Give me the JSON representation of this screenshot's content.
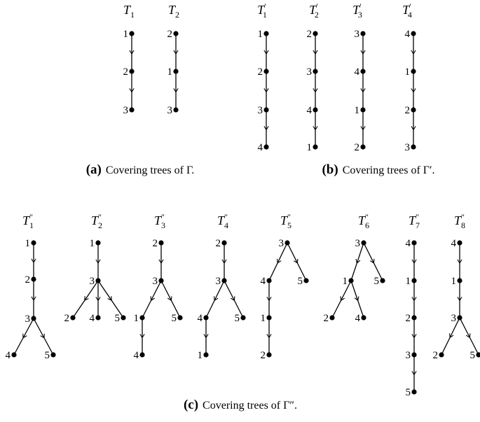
{
  "panels": [
    {
      "id": "a",
      "caption_label": "(a)",
      "caption_text": "Covering trees of Γ.",
      "trees": [
        {
          "name": "T",
          "sub": "1",
          "prime": "",
          "nodes": [
            "1",
            "2",
            "3"
          ],
          "edges": [
            [
              0,
              1
            ],
            [
              1,
              2
            ]
          ]
        },
        {
          "name": "T",
          "sub": "2",
          "prime": "",
          "nodes": [
            "2",
            "1",
            "3"
          ],
          "edges": [
            [
              0,
              1
            ],
            [
              1,
              2
            ]
          ]
        }
      ]
    },
    {
      "id": "b",
      "caption_label": "(b)",
      "caption_text": "Covering trees of Γ′.",
      "trees": [
        {
          "name": "T",
          "sub": "1",
          "prime": "′",
          "nodes": [
            "1",
            "2",
            "3",
            "4"
          ],
          "edges": [
            [
              0,
              1
            ],
            [
              1,
              2
            ],
            [
              2,
              3
            ]
          ]
        },
        {
          "name": "T",
          "sub": "2",
          "prime": "′",
          "nodes": [
            "2",
            "3",
            "4",
            "1"
          ],
          "edges": [
            [
              0,
              1
            ],
            [
              1,
              2
            ],
            [
              2,
              3
            ]
          ]
        },
        {
          "name": "T",
          "sub": "3",
          "prime": "′",
          "nodes": [
            "3",
            "4",
            "1",
            "2"
          ],
          "edges": [
            [
              0,
              1
            ],
            [
              1,
              2
            ],
            [
              2,
              3
            ]
          ]
        },
        {
          "name": "T",
          "sub": "4",
          "prime": "′",
          "nodes": [
            "4",
            "1",
            "2",
            "3"
          ],
          "edges": [
            [
              0,
              1
            ],
            [
              1,
              2
            ],
            [
              2,
              3
            ]
          ]
        }
      ]
    },
    {
      "id": "c",
      "caption_label": "(c)",
      "caption_text": "Covering trees of Γ″.",
      "trees": [
        {
          "name": "T",
          "sub": "1",
          "prime": "″",
          "nodes": [
            "1",
            "2",
            "3",
            "4",
            "5"
          ],
          "edges": [
            [
              0,
              1
            ],
            [
              1,
              2
            ],
            [
              2,
              3
            ],
            [
              2,
              4
            ]
          ]
        },
        {
          "name": "T",
          "sub": "2",
          "prime": "″",
          "nodes": [
            "1",
            "3",
            "2",
            "4",
            "5"
          ],
          "edges": [
            [
              0,
              1
            ],
            [
              1,
              2
            ],
            [
              1,
              3
            ],
            [
              1,
              4
            ]
          ]
        },
        {
          "name": "T",
          "sub": "3",
          "prime": "″",
          "nodes": [
            "2",
            "3",
            "1",
            "5",
            "4"
          ],
          "edges": [
            [
              0,
              1
            ],
            [
              1,
              2
            ],
            [
              1,
              3
            ],
            [
              2,
              4
            ]
          ]
        },
        {
          "name": "T",
          "sub": "4",
          "prime": "″",
          "nodes": [
            "2",
            "3",
            "4",
            "5",
            "1"
          ],
          "edges": [
            [
              0,
              1
            ],
            [
              1,
              2
            ],
            [
              1,
              3
            ],
            [
              2,
              4
            ]
          ]
        },
        {
          "name": "T",
          "sub": "5",
          "prime": "″",
          "nodes": [
            "3",
            "4",
            "5",
            "1",
            "2"
          ],
          "edges": [
            [
              0,
              1
            ],
            [
              0,
              2
            ],
            [
              1,
              3
            ],
            [
              3,
              4
            ]
          ]
        },
        {
          "name": "T",
          "sub": "6",
          "prime": "″",
          "nodes": [
            "3",
            "1",
            "5",
            "2",
            "4"
          ],
          "edges": [
            [
              0,
              1
            ],
            [
              0,
              2
            ],
            [
              1,
              3
            ],
            [
              1,
              4
            ]
          ]
        },
        {
          "name": "T",
          "sub": "7",
          "prime": "″",
          "nodes": [
            "4",
            "1",
            "2",
            "3",
            "5"
          ],
          "edges": [
            [
              0,
              1
            ],
            [
              1,
              2
            ],
            [
              2,
              3
            ],
            [
              3,
              4
            ]
          ]
        },
        {
          "name": "T",
          "sub": "8",
          "prime": "″",
          "nodes": [
            "4",
            "1",
            "3",
            "2",
            "5"
          ],
          "edges": [
            [
              0,
              1
            ],
            [
              1,
              2
            ],
            [
              2,
              3
            ],
            [
              2,
              4
            ]
          ]
        }
      ]
    }
  ]
}
